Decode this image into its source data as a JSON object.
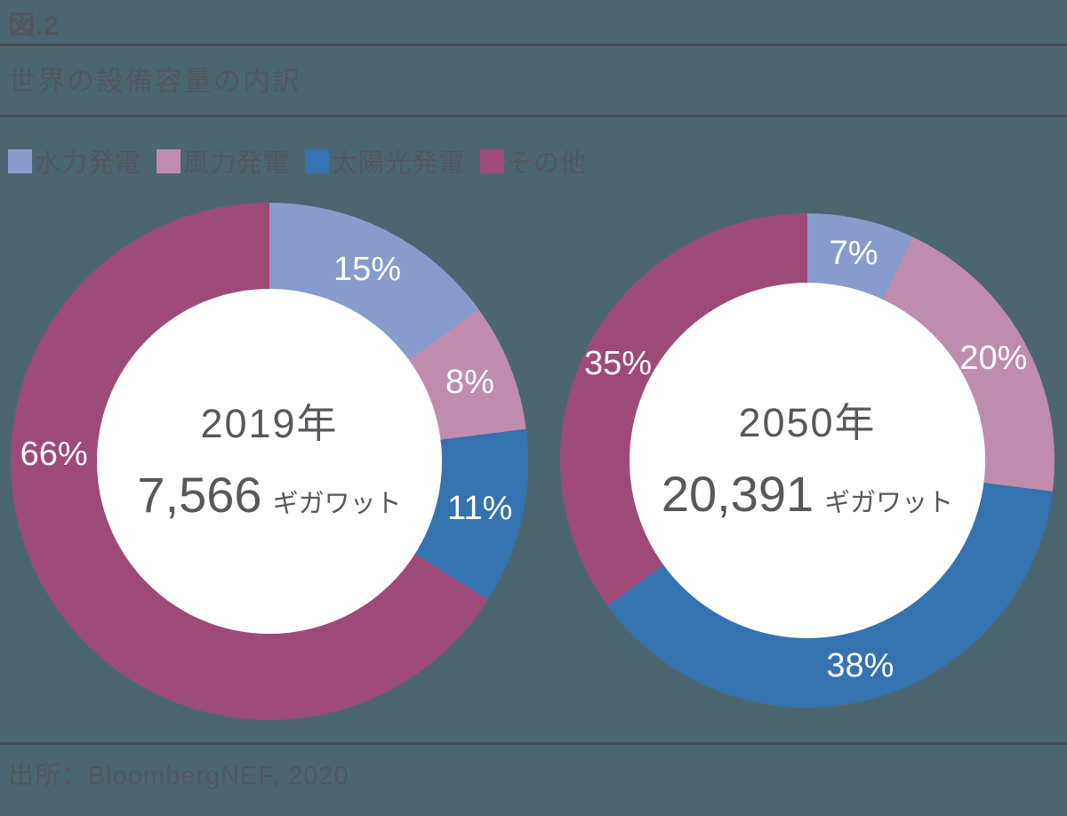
{
  "page": {
    "figure_label": "図.2",
    "title": "世界の設備容量の内訳",
    "source": "出所：BloombergNEF, 2020",
    "colors": {
      "background": "#4C6671",
      "text": "#53565C",
      "rule": "#4A4D53",
      "donut_center_text": "#57575C",
      "slice_label_text": "#FFFFFF",
      "donut_hole": "#FFFFFF"
    }
  },
  "chart_data": {
    "type": "pie",
    "subtype": "donut",
    "legend_position": "top",
    "unit_label": "ギガワット",
    "categories": [
      "水力発電",
      "風力発電",
      "太陽光発電",
      "その他"
    ],
    "colors": [
      "#879BCC",
      "#BF8CAE",
      "#3473B0",
      "#9D4A79"
    ],
    "charts": [
      {
        "center_title": "2019年",
        "center_value": "7,566",
        "values": [
          15,
          8,
          11,
          66
        ],
        "labels": [
          "15%",
          "8%",
          "11%",
          "66%"
        ],
        "label_angle_override": {
          "3": 272
        }
      },
      {
        "center_title": "2050年",
        "center_value": "20,391",
        "values": [
          7,
          20,
          38,
          35
        ],
        "labels": [
          "7%",
          "20%",
          "38%",
          "35%"
        ],
        "label_angle_override": {}
      }
    ]
  }
}
